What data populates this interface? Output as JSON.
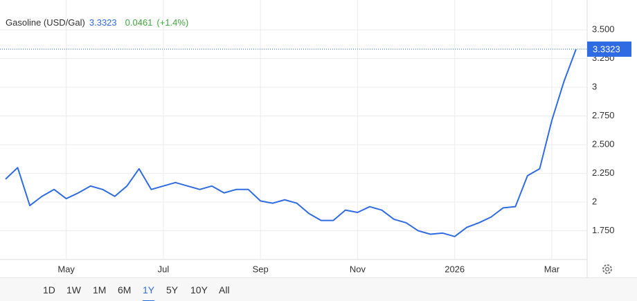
{
  "chart_data": {
    "type": "line",
    "title": "Gasoline (USD/Gal)",
    "change": 0.0461,
    "change_pct_label": "(+1.4%)",
    "categories": [
      null,
      null,
      null,
      null,
      null,
      "May",
      null,
      null,
      null,
      null,
      null,
      null,
      null,
      "Jul",
      null,
      null,
      null,
      null,
      null,
      null,
      null,
      "Sep",
      null,
      null,
      null,
      null,
      null,
      null,
      null,
      "Nov",
      null,
      null,
      null,
      null,
      null,
      null,
      null,
      "2026",
      null,
      null,
      null,
      null,
      null,
      null,
      null,
      "Mar",
      null,
      null
    ],
    "series": [
      {
        "name": "Gasoline",
        "color": "#2f6be3",
        "values": [
          2.2,
          2.3,
          1.97,
          2.05,
          2.11,
          2.03,
          2.08,
          2.14,
          2.11,
          2.05,
          2.14,
          2.29,
          2.11,
          2.14,
          2.17,
          2.14,
          2.11,
          2.14,
          2.08,
          2.11,
          2.11,
          2.01,
          1.99,
          2.02,
          1.99,
          1.9,
          1.84,
          1.84,
          1.93,
          1.91,
          1.96,
          1.93,
          1.85,
          1.82,
          1.75,
          1.72,
          1.73,
          1.7,
          1.78,
          1.82,
          1.87,
          1.95,
          1.96,
          2.23,
          2.29,
          2.71,
          3.05,
          3.3323
        ]
      }
    ],
    "ylim": [
      1.5,
      3.7
    ],
    "yticks": [
      {
        "value": 1.75,
        "label": "1.750"
      },
      2,
      {
        "value": 2.25,
        "label": "2.250"
      },
      {
        "value": 2.5,
        "label": "2.500"
      },
      {
        "value": 2.75,
        "label": "2.750"
      },
      3,
      {
        "value": 3.25,
        "label": "3.250"
      },
      {
        "value": 3.5,
        "label": "3.500"
      }
    ],
    "grid": true,
    "ranges": [
      "1D",
      "1W",
      "1M",
      "6M",
      "1Y",
      "5Y",
      "10Y",
      "All"
    ],
    "selected_range": "1Y"
  }
}
